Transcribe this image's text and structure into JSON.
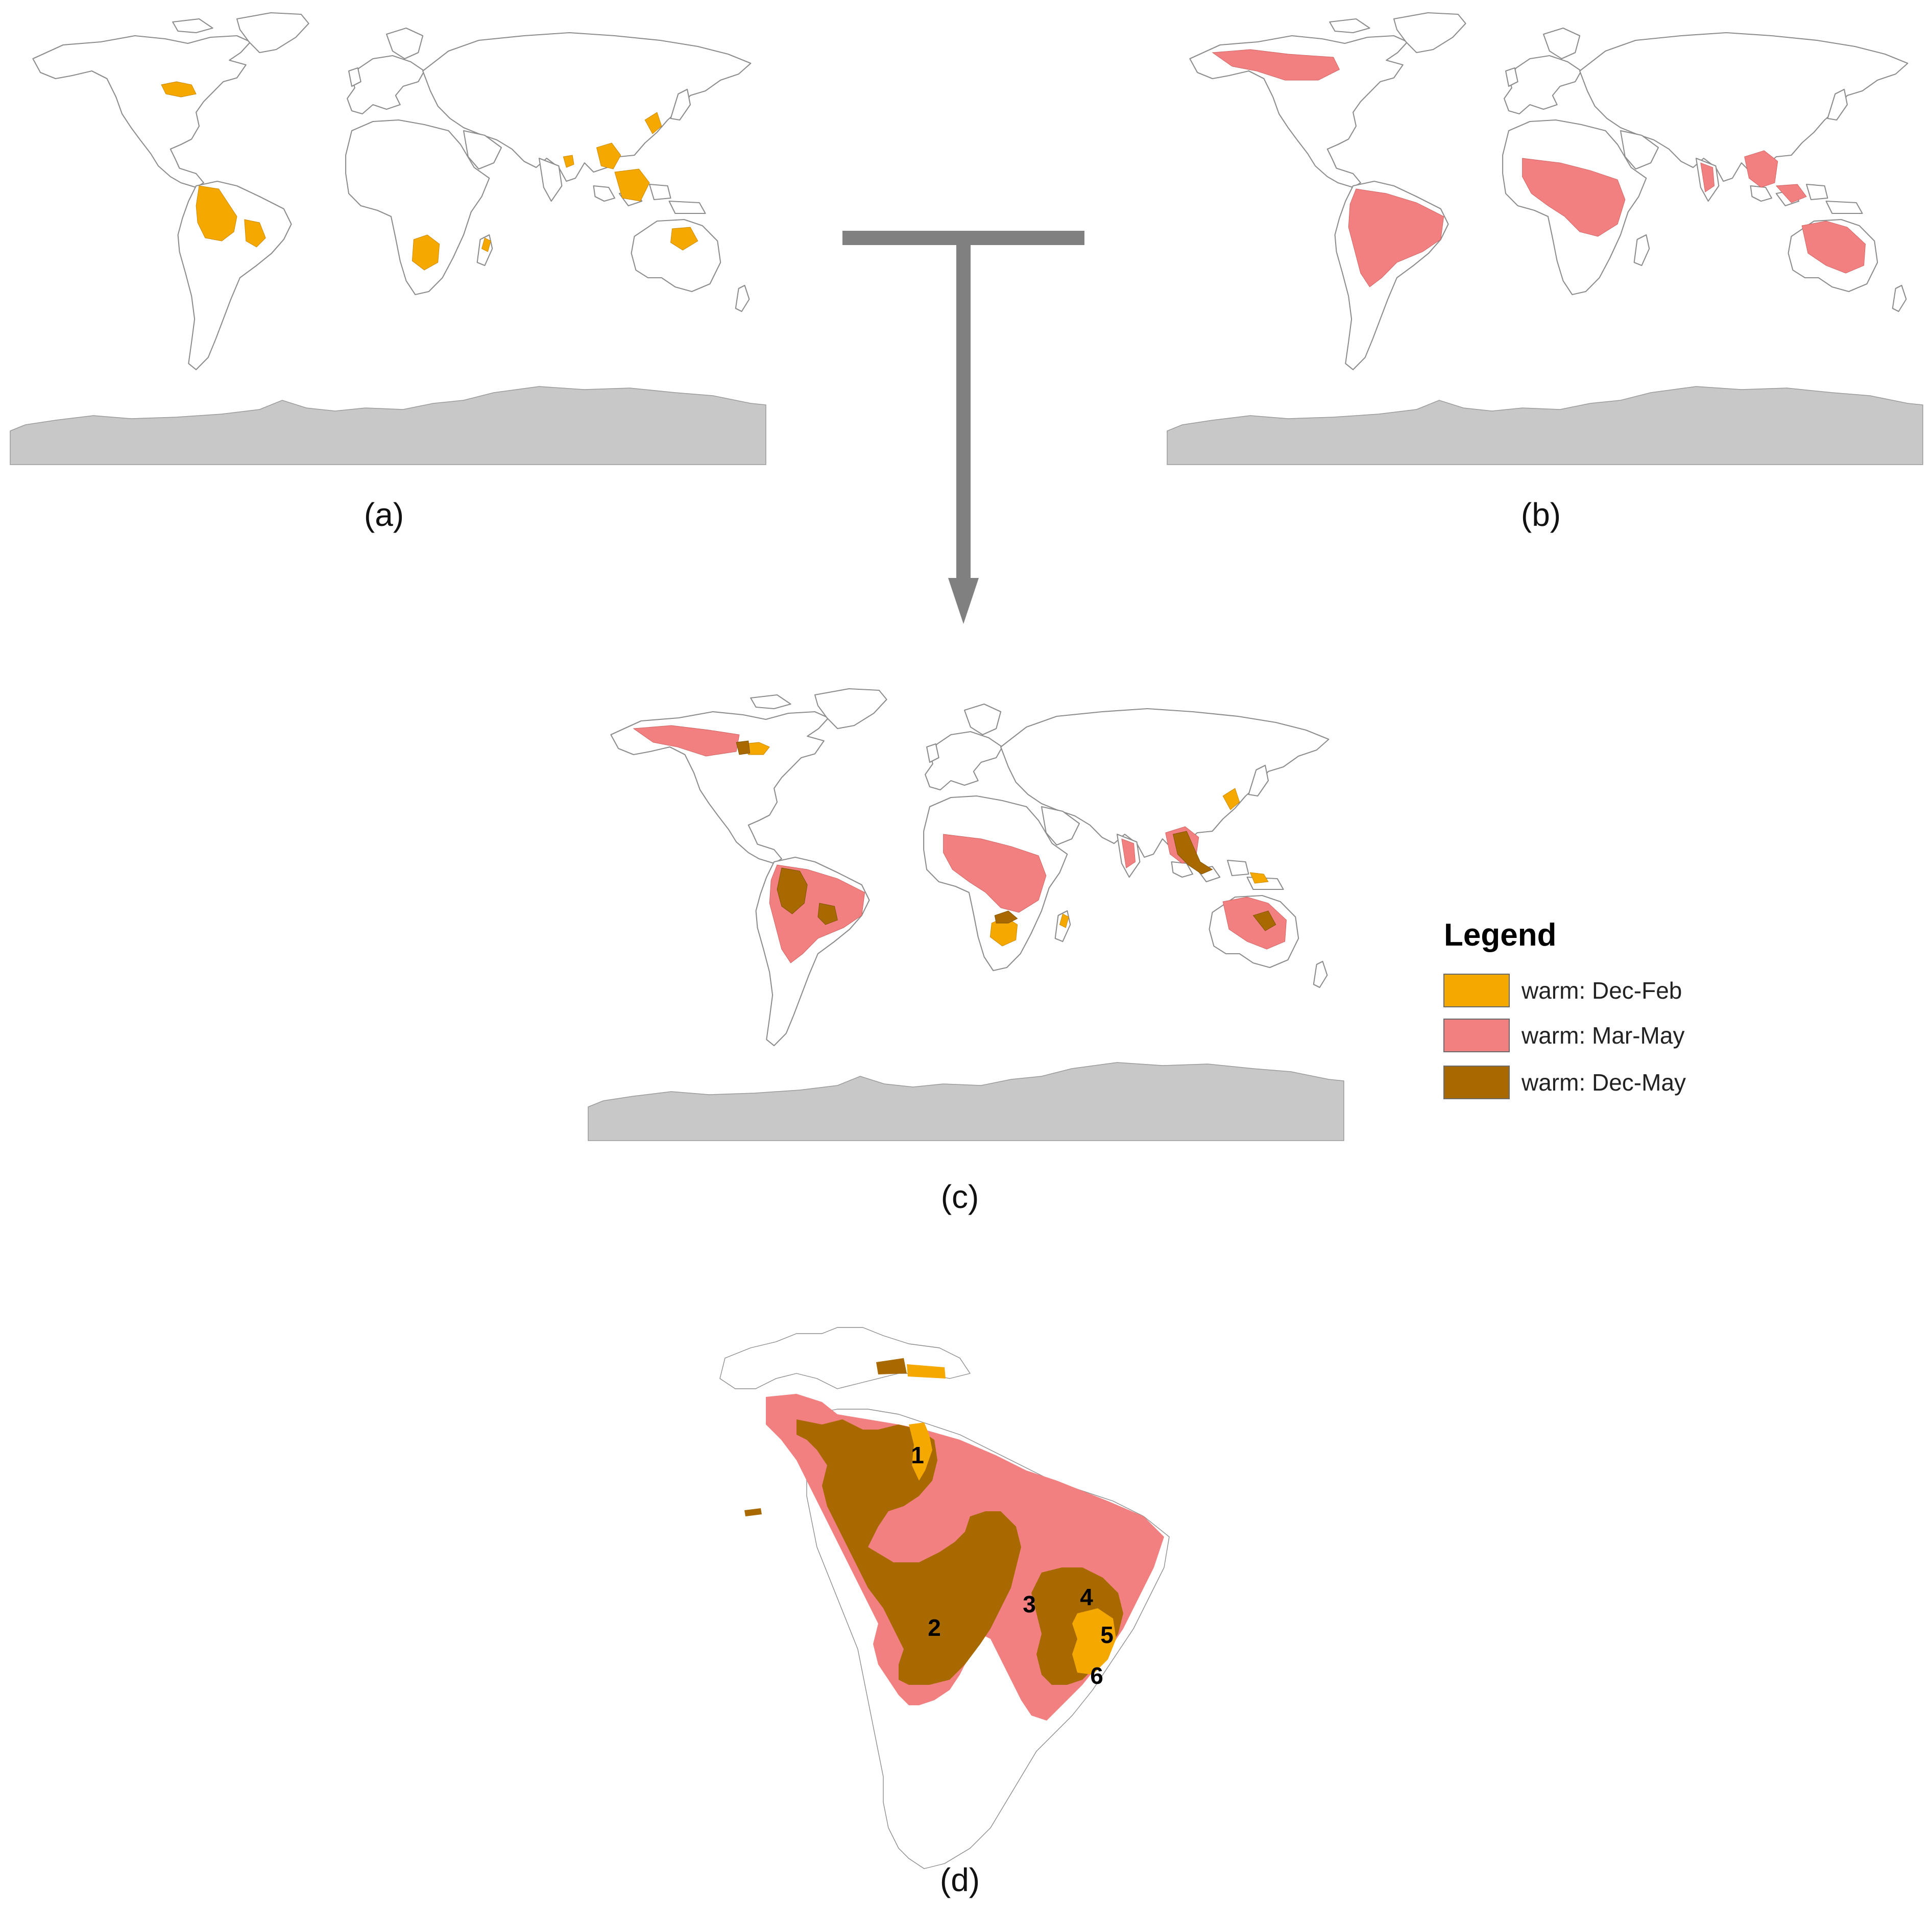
{
  "panels": {
    "a": {
      "label": "(a)"
    },
    "b": {
      "label": "(b)"
    },
    "c": {
      "label": "(c)"
    },
    "d": {
      "label": "(d)"
    }
  },
  "legend": {
    "title": "Legend",
    "items": [
      {
        "label": "warm: Dec-Feb",
        "color": "#F5A800"
      },
      {
        "label": "warm: Mar-May",
        "color": "#F28080"
      },
      {
        "label": "warm: Dec-May",
        "color": "#A86A00"
      }
    ]
  },
  "colors": {
    "land": "#FFFFFF",
    "coastline": "#8C8C8C",
    "antarctica": "#C8C8C8",
    "arrow": "#808080"
  },
  "regions": {
    "labels": [
      "1",
      "2",
      "3",
      "4",
      "5",
      "6"
    ]
  }
}
